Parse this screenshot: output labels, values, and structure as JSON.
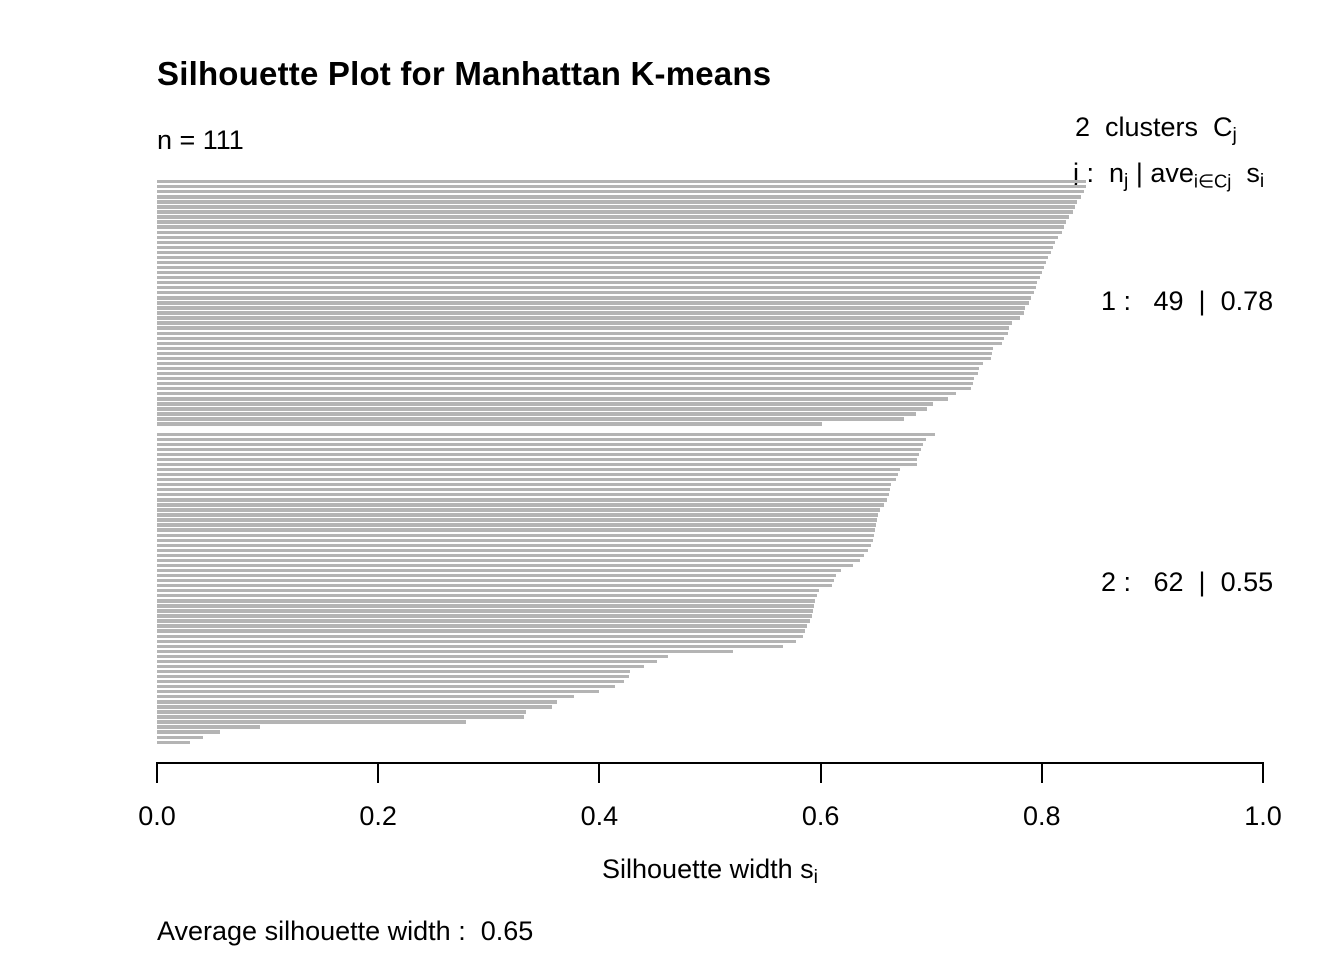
{
  "header": {
    "title": "Silhouette Plot for Manhattan K-means",
    "n_label": "n = 111"
  },
  "legend": {
    "line1_main": "2  clusters  C",
    "line1_sub": "j",
    "line2_p1": "j :  n",
    "line2_s1": "j",
    "line2_p2": " | ave",
    "line2_s2": "i∈Cj",
    "line2_p3": "  s",
    "line2_s3": "i"
  },
  "clusters_panel": {
    "cluster1_label": "1 :   49  |  0.78",
    "cluster2_label": "2 :   62  |  0.55"
  },
  "axis": {
    "label_main": "Silhouette width s",
    "label_sub": "i"
  },
  "footer": {
    "average_label": "Average silhouette width :  0.65"
  },
  "chart_data": {
    "type": "bar",
    "orientation": "horizontal",
    "title": "Silhouette Plot for Manhattan K-means",
    "n": 111,
    "xlabel": "Silhouette width s_i",
    "xlim": [
      0,
      1
    ],
    "x_ticks": [
      0,
      0.2,
      0.4,
      0.6,
      0.8,
      1.0
    ],
    "x_tick_labels": [
      "0.0",
      "0.2",
      "0.4",
      "0.6",
      "0.8",
      "1.0"
    ],
    "average_silhouette_width": 0.65,
    "bar_color": "#b4b4b4",
    "grid": false,
    "clusters": [
      {
        "j": 1,
        "n_j": 49,
        "ave_sil": 0.78,
        "values": [
          0.84,
          0.84,
          0.838,
          0.835,
          0.832,
          0.83,
          0.828,
          0.825,
          0.822,
          0.82,
          0.818,
          0.815,
          0.812,
          0.81,
          0.808,
          0.806,
          0.804,
          0.802,
          0.8,
          0.798,
          0.796,
          0.795,
          0.793,
          0.79,
          0.788,
          0.785,
          0.784,
          0.78,
          0.773,
          0.77,
          0.769,
          0.766,
          0.764,
          0.756,
          0.755,
          0.754,
          0.747,
          0.743,
          0.742,
          0.739,
          0.738,
          0.736,
          0.722,
          0.715,
          0.702,
          0.696,
          0.686,
          0.675,
          0.601
        ]
      },
      {
        "j": 2,
        "n_j": 62,
        "ave_sil": 0.55,
        "values": [
          0.703,
          0.695,
          0.693,
          0.691,
          0.689,
          0.687,
          0.687,
          0.672,
          0.67,
          0.668,
          0.664,
          0.663,
          0.662,
          0.66,
          0.657,
          0.654,
          0.652,
          0.651,
          0.65,
          0.649,
          0.648,
          0.647,
          0.646,
          0.643,
          0.639,
          0.636,
          0.629,
          0.618,
          0.614,
          0.612,
          0.61,
          0.599,
          0.597,
          0.595,
          0.594,
          0.593,
          0.592,
          0.59,
          0.588,
          0.586,
          0.584,
          0.578,
          0.566,
          0.521,
          0.462,
          0.452,
          0.44,
          0.428,
          0.427,
          0.422,
          0.414,
          0.4,
          0.377,
          0.362,
          0.357,
          0.334,
          0.332,
          0.279,
          0.093,
          0.057,
          0.042,
          0.03
        ]
      }
    ]
  }
}
